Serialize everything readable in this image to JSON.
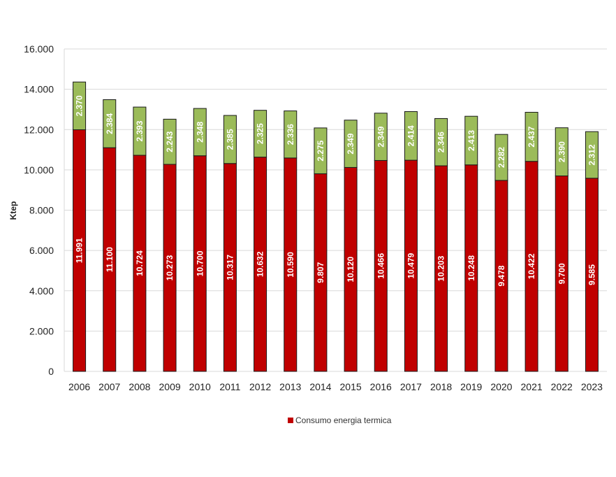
{
  "chart_data": {
    "type": "bar",
    "stacked": true,
    "categories": [
      "2006",
      "2007",
      "2008",
      "2009",
      "2010",
      "2011",
      "2012",
      "2013",
      "2014",
      "2015",
      "2016",
      "2017",
      "2018",
      "2019",
      "2020",
      "2021",
      "2022",
      "2023"
    ],
    "series": [
      {
        "name": "Consumo energia termica",
        "color": "#c00000",
        "values": [
          11991,
          11100,
          10724,
          10273,
          10700,
          10317,
          10632,
          10590,
          9807,
          10120,
          10466,
          10479,
          10203,
          10248,
          9478,
          10422,
          9700,
          9585
        ],
        "labels": [
          "11.991",
          "11.100",
          "10.724",
          "10.273",
          "10.700",
          "10.317",
          "10.632",
          "10.590",
          "9.807",
          "10.120",
          "10.466",
          "10.479",
          "10.203",
          "10.248",
          "9.478",
          "10.422",
          "9.700",
          "9.585"
        ]
      },
      {
        "color": "#9bbb59",
        "values": [
          2370,
          2384,
          2393,
          2243,
          2348,
          2385,
          2325,
          2336,
          2275,
          2349,
          2349,
          2414,
          2346,
          2413,
          2282,
          2437,
          2390,
          2312
        ],
        "labels": [
          "2.370",
          "2.384",
          "2.393",
          "2.243",
          "2.348",
          "2.385",
          "2.325",
          "2.336",
          "2.275",
          "2.349",
          "2.349",
          "2.414",
          "2.346",
          "2.413",
          "2.282",
          "2.437",
          "2.390",
          "2.312"
        ]
      }
    ],
    "ylabel": "Ktep",
    "ylim": [
      0,
      16000
    ],
    "yticks": [
      0,
      2000,
      4000,
      6000,
      8000,
      10000,
      12000,
      14000,
      16000
    ],
    "ytick_labels": [
      "0",
      "2.000",
      "4.000",
      "6.000",
      "8.000",
      "10.000",
      "12.000",
      "14.000",
      "16.000"
    ],
    "grid": true,
    "legend_position": "bottom",
    "legend": [
      "Consumo energia termica"
    ]
  }
}
